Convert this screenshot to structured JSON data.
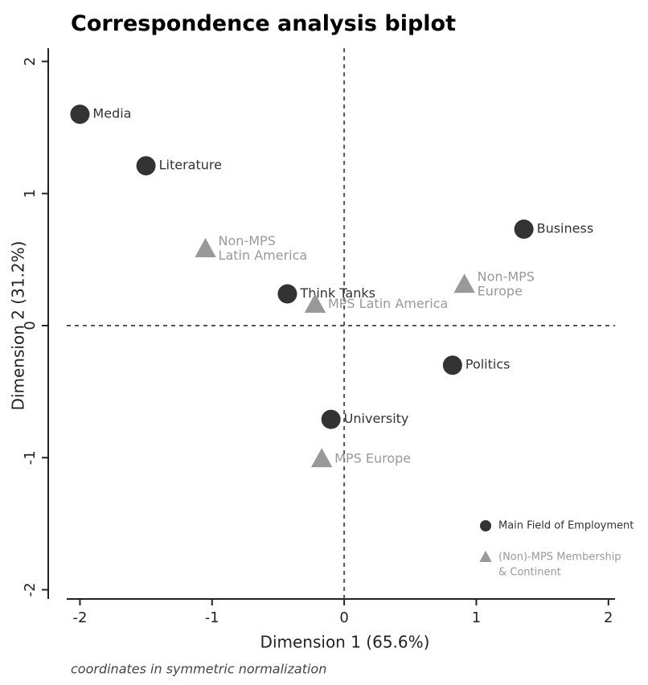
{
  "chart_data": {
    "type": "scatter",
    "title": "Correspondence analysis biplot",
    "subtitle": "coordinates in symmetric normalization",
    "x_label": "Dimension 1 (65.6%)",
    "y_label": "Dimension 2 (31.2%)",
    "xlim": [
      -2.1,
      2.05
    ],
    "ylim": [
      -2.07,
      2.1
    ],
    "xticks": [
      -2,
      -1,
      0,
      1,
      2
    ],
    "yticks": [
      -2,
      -1,
      0,
      1,
      2
    ],
    "vline": 0,
    "hline": 0,
    "legend": "bottom-right",
    "series": [
      {
        "name": [
          "Main Field of Employment"
        ],
        "color": "#333333",
        "marker": "circle",
        "x": [
          -2.0,
          -1.5,
          1.36,
          -0.43,
          0.82,
          -0.1
        ],
        "values": [
          1.6,
          1.21,
          0.73,
          0.24,
          -0.3,
          -0.71
        ],
        "labels": [
          [
            "Media"
          ],
          [
            "Literature"
          ],
          [
            "Business"
          ],
          [
            "Think Tanks"
          ],
          [
            "Politics"
          ],
          [
            "University"
          ]
        ]
      },
      {
        "name": [
          "(Non)-MPS Membership",
          "& Continent"
        ],
        "color": "#999999",
        "marker": "triangle",
        "x": [
          -1.05,
          -0.22,
          0.91,
          -0.17
        ],
        "values": [
          0.58,
          0.16,
          0.31,
          -1.01
        ],
        "labels": [
          [
            "Non-MPS",
            "Latin America"
          ],
          [
            "MPS Latin America"
          ],
          [
            "Non-MPS",
            "Europe"
          ],
          [
            "MPS Europe"
          ]
        ]
      }
    ]
  }
}
